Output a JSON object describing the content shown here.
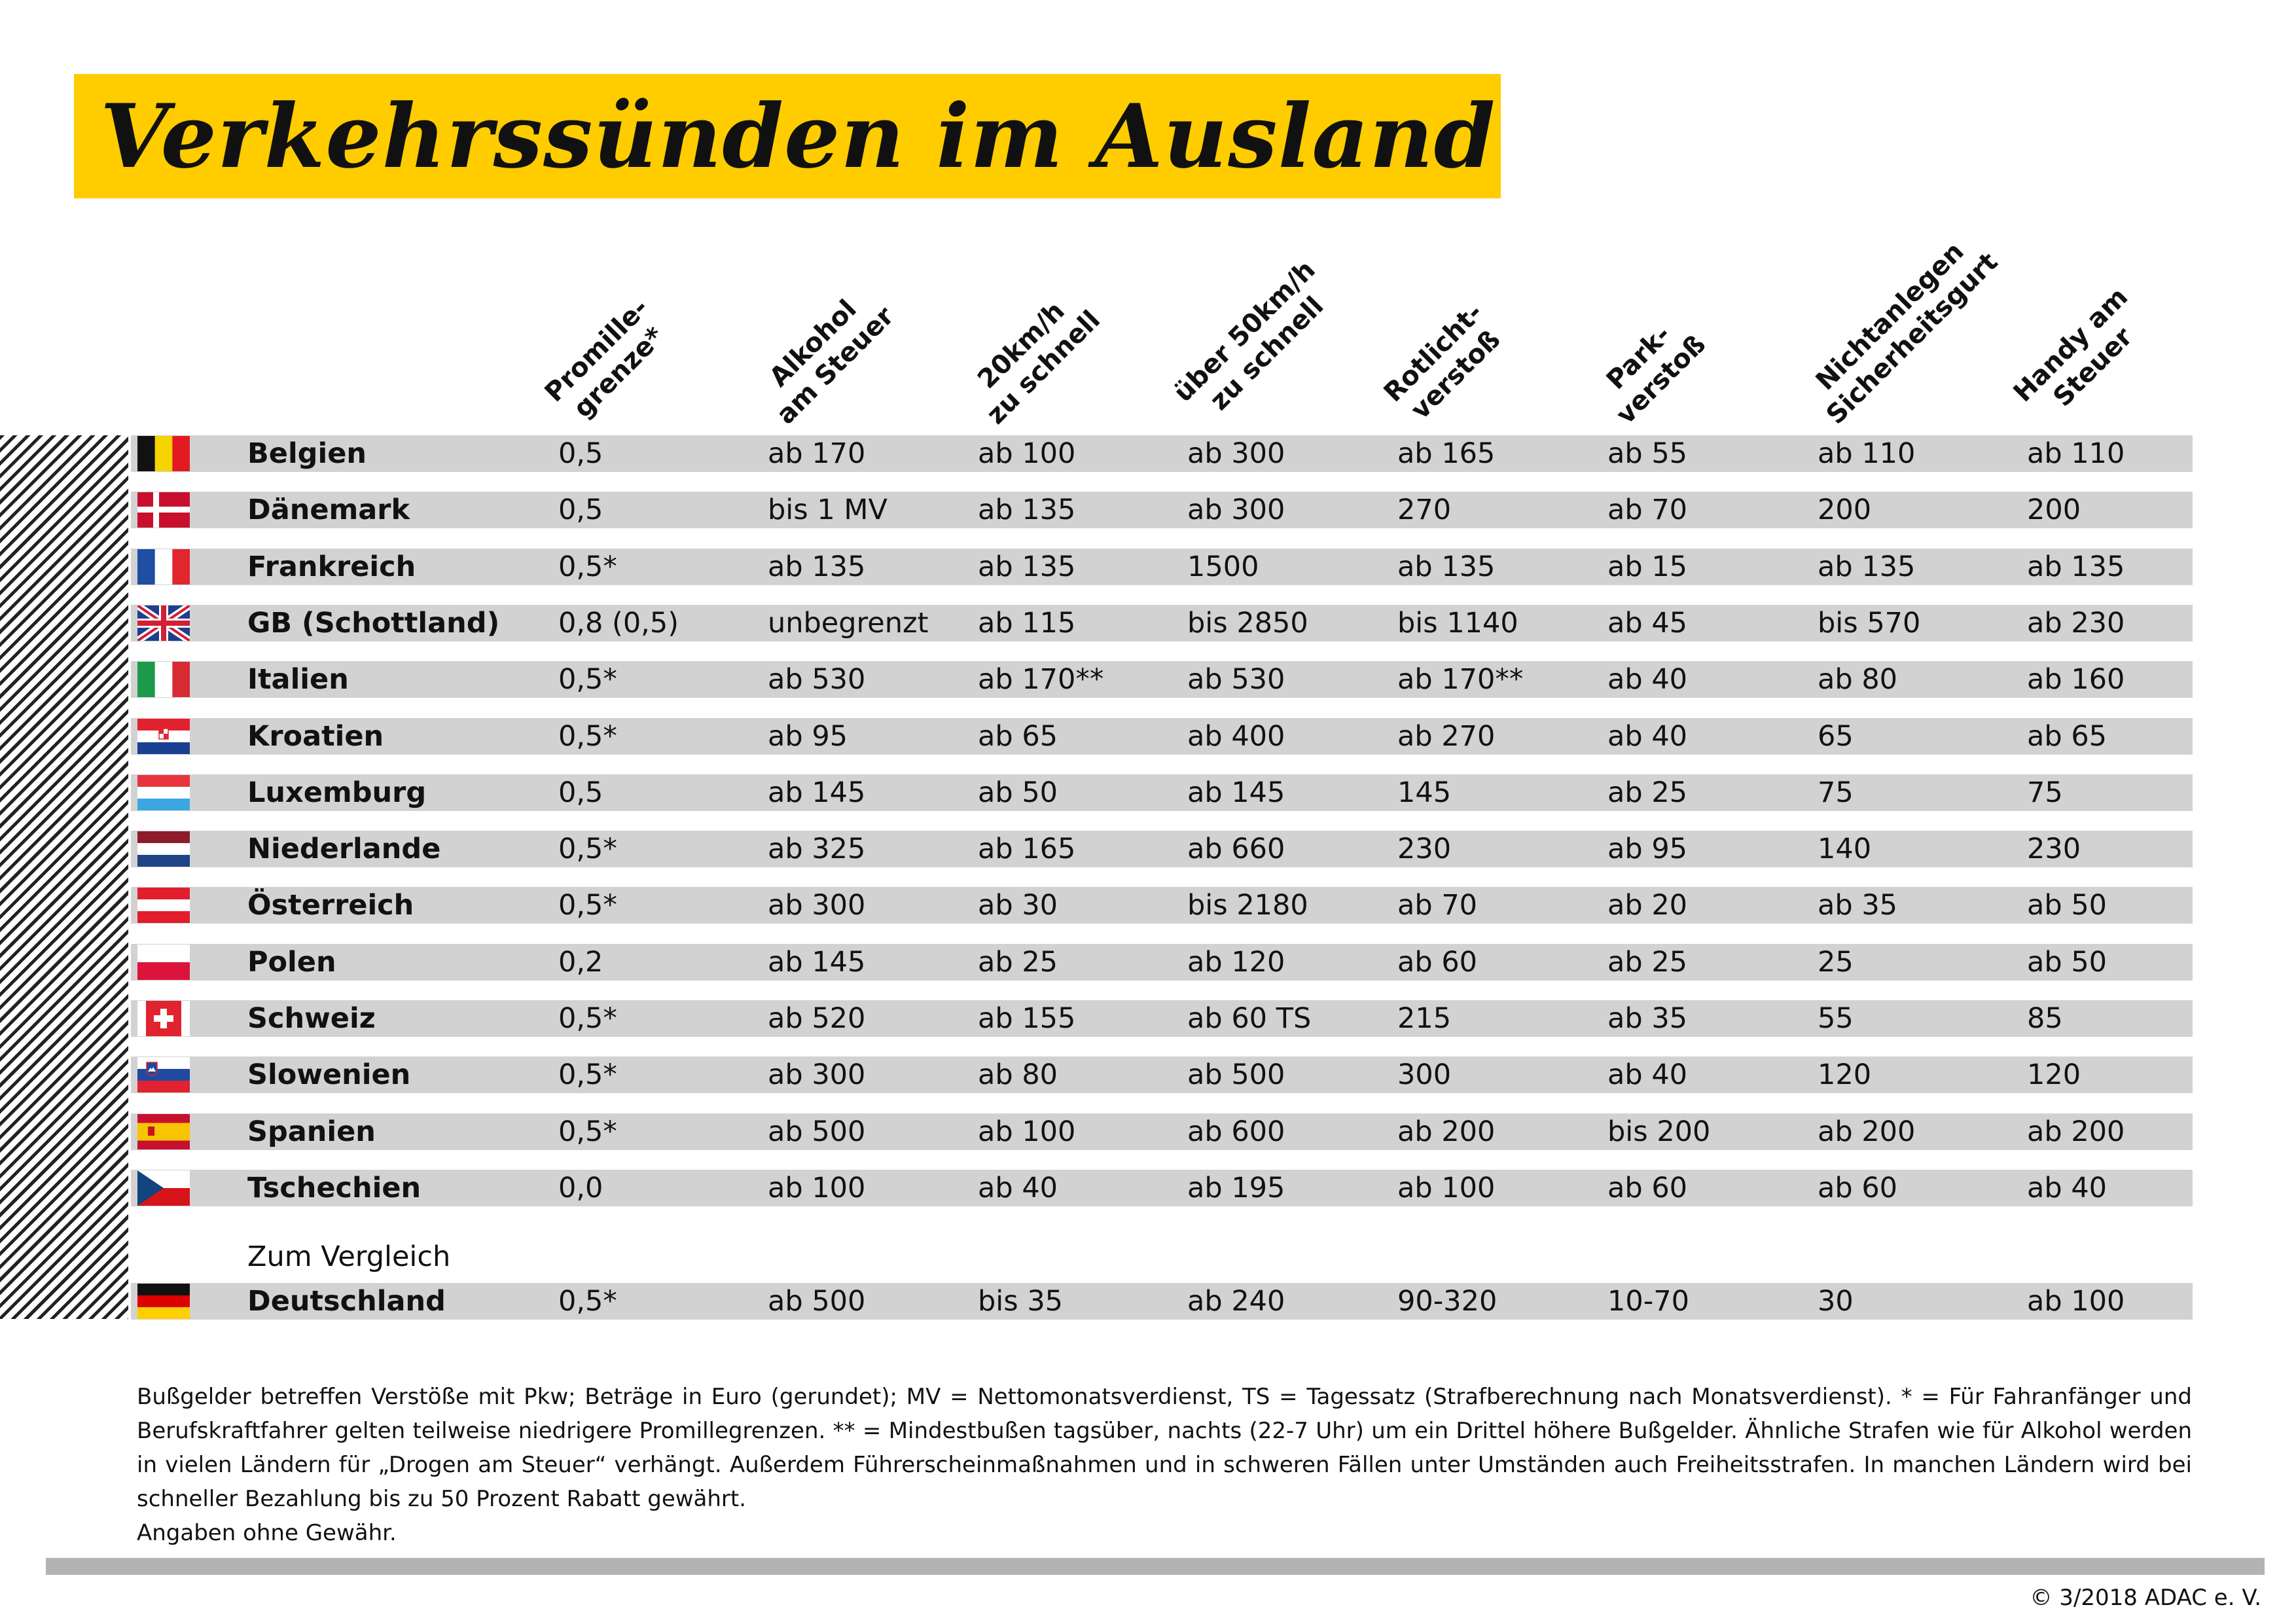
{
  "title": "Verkehrssünden im Ausland",
  "columns": [
    {
      "line1": "Promille-",
      "line2": "grenze*"
    },
    {
      "line1": "Alkohol",
      "line2": "am Steuer"
    },
    {
      "line1": "20km/h",
      "line2": "zu schnell"
    },
    {
      "line1": "über 50km/h",
      "line2": "zu schnell"
    },
    {
      "line1": "Rotlicht-",
      "line2": "verstoß"
    },
    {
      "line1": "Park-",
      "line2": "verstoß"
    },
    {
      "line1": "Nichtanlegen",
      "line2": "Sicherheitsgurt"
    },
    {
      "line1": "Handy am",
      "line2": "Steuer"
    }
  ],
  "rows": [
    {
      "flag": "flag-belgium",
      "country": "Belgien",
      "values": [
        "0,5",
        "ab 170",
        "ab 100",
        "ab 300",
        "ab 165",
        "ab 55",
        "ab 110",
        "ab 110"
      ]
    },
    {
      "flag": "flag-denmark",
      "country": "Dänemark",
      "values": [
        "0,5",
        "bis 1 MV",
        "ab 135",
        "ab 300",
        "270",
        "ab 70",
        "200",
        "200"
      ]
    },
    {
      "flag": "flag-france",
      "country": "Frankreich",
      "values": [
        "0,5*",
        "ab 135",
        "ab 135",
        "1500",
        "ab 135",
        "ab 15",
        "ab 135",
        "ab 135"
      ]
    },
    {
      "flag": "flag-united-kingdom",
      "country": "GB (Schottland)",
      "values": [
        "0,8 (0,5)",
        "unbegrenzt",
        "ab 115",
        "bis 2850",
        "bis 1140",
        "ab 45",
        "bis 570",
        "ab 230"
      ]
    },
    {
      "flag": "flag-italy",
      "country": "Italien",
      "values": [
        "0,5*",
        "ab 530",
        "ab 170**",
        "ab 530",
        "ab 170**",
        "ab 40",
        "ab 80",
        "ab 160"
      ]
    },
    {
      "flag": "flag-croatia",
      "country": "Kroatien",
      "values": [
        "0,5*",
        "ab 95",
        "ab 65",
        "ab 400",
        "ab 270",
        "ab 40",
        "65",
        "ab 65"
      ]
    },
    {
      "flag": "flag-luxembourg",
      "country": "Luxemburg",
      "values": [
        "0,5",
        "ab 145",
        "ab 50",
        "ab 145",
        "145",
        "ab 25",
        "75",
        "75"
      ]
    },
    {
      "flag": "flag-netherlands",
      "country": "Niederlande",
      "values": [
        "0,5*",
        "ab 325",
        "ab 165",
        "ab 660",
        "230",
        "ab 95",
        "140",
        "230"
      ]
    },
    {
      "flag": "flag-austria",
      "country": "Österreich",
      "values": [
        "0,5*",
        "ab 300",
        "ab 30",
        "bis 2180",
        "ab 70",
        "ab 20",
        "ab 35",
        "ab 50"
      ]
    },
    {
      "flag": "flag-poland",
      "country": "Polen",
      "values": [
        "0,2",
        "ab 145",
        "ab 25",
        "ab 120",
        "ab 60",
        "ab 25",
        "25",
        "ab 50"
      ]
    },
    {
      "flag": "flag-switzerland",
      "country": "Schweiz",
      "values": [
        "0,5*",
        "ab 520",
        "ab 155",
        "ab 60 TS",
        "215",
        "ab 35",
        "55",
        "85"
      ]
    },
    {
      "flag": "flag-slovenia",
      "country": "Slowenien",
      "values": [
        "0,5*",
        "ab 300",
        "ab 80",
        "ab 500",
        "300",
        "ab 40",
        "120",
        "120"
      ]
    },
    {
      "flag": "flag-spain",
      "country": "Spanien",
      "values": [
        "0,5*",
        "ab 500",
        "ab 100",
        "ab 600",
        "ab 200",
        "bis 200",
        "ab 200",
        "ab 200"
      ]
    },
    {
      "flag": "flag-czech-republic",
      "country": "Tschechien",
      "values": [
        "0,0",
        "ab 100",
        "ab 40",
        "ab 195",
        "ab 100",
        "ab 60",
        "ab 60",
        "ab 40"
      ]
    }
  ],
  "comparison": {
    "label": "Zum Vergleich",
    "flag": "flag-germany",
    "country": "Deutschland",
    "values": [
      "0,5*",
      "ab 500",
      "bis 35",
      "ab 240",
      "90-320",
      "10-70",
      "30",
      "ab 100"
    ]
  },
  "footnote": "Bußgelder betreffen Verstöße mit Pkw; Beträge in Euro (gerundet); MV = Nettomonatsverdienst, TS = Tagessatz (Strafberechnung nach Monatsverdienst). * = Für Fahranfänger und Berufskraftfahrer gelten teilweise niedrigere Promillegrenzen. ** = Mindestbußen tagsüber, nachts (22-7 Uhr) um ein Drittel höhere Bußgelder. Ähnliche Strafen wie für Alkohol werden in vielen Ländern für „Drogen am Steuer“ verhängt. Außerdem Führerscheinmaßnahmen und in schweren Fällen unter Umständen auch Freiheitsstrafen. In manchen Ländern wird bei schneller Bezahlung bis zu 50 Prozent Rabatt gewährt.",
  "disclaimer": "Angaben ohne Gewähr.",
  "copyright": "© 3/2018 ADAC e. V.",
  "colors": {
    "accent": "#ffcc00",
    "row_band": "#d2d2d2",
    "rule": "#b3b3b3"
  }
}
